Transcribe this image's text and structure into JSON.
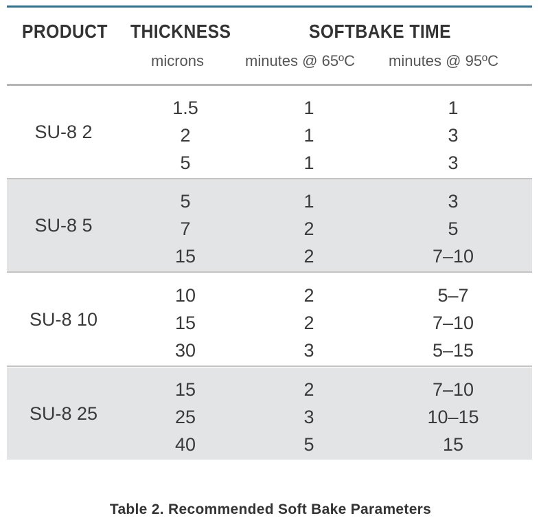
{
  "header": {
    "product": "PRODUCT",
    "thickness": "THICKNESS",
    "softbake": "SOFTBAKE TIME",
    "thickness_unit": "microns",
    "unit_65": "minutes @ 65ºC",
    "unit_95": "minutes @ 95ºC"
  },
  "groups": [
    {
      "product": "SU-8 2",
      "shaded": false,
      "rows": [
        {
          "thickness": "1.5",
          "t65": "1",
          "t95": "1"
        },
        {
          "thickness": "2",
          "t65": "1",
          "t95": "3"
        },
        {
          "thickness": "5",
          "t65": "1",
          "t95": "3"
        }
      ]
    },
    {
      "product": "SU-8 5",
      "shaded": true,
      "rows": [
        {
          "thickness": "5",
          "t65": "1",
          "t95": "3"
        },
        {
          "thickness": "7",
          "t65": "2",
          "t95": "5"
        },
        {
          "thickness": "15",
          "t65": "2",
          "t95": "7–10"
        }
      ]
    },
    {
      "product": "SU-8 10",
      "shaded": false,
      "rows": [
        {
          "thickness": "10",
          "t65": "2",
          "t95": "5–7"
        },
        {
          "thickness": "15",
          "t65": "2",
          "t95": "7–10"
        },
        {
          "thickness": "30",
          "t65": "3",
          "t95": "5–15"
        }
      ]
    },
    {
      "product": "SU-8 25",
      "shaded": true,
      "rows": [
        {
          "thickness": "15",
          "t65": "2",
          "t95": "7–10"
        },
        {
          "thickness": "25",
          "t65": "3",
          "t95": "10–15"
        },
        {
          "thickness": "40",
          "t65": "5",
          "t95": "15"
        }
      ]
    }
  ],
  "caption": "Table 2. Recommended Soft Bake Parameters",
  "colors": {
    "top_rule": "#2f6f93",
    "shaded_row": "#e3e4e6",
    "text": "#3a3a3a"
  }
}
